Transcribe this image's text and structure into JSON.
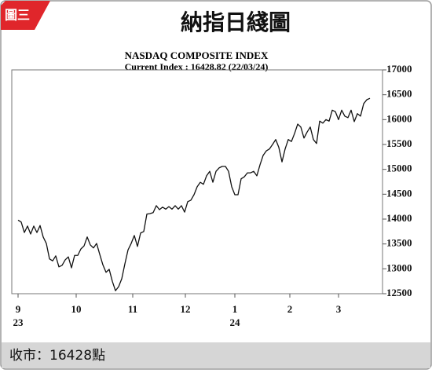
{
  "header": {
    "badge": "圖三",
    "title": "納指日綫圖"
  },
  "footer": "收市：16428點",
  "chart_data": {
    "type": "line",
    "title": "NASDAQ COMPOSITE INDEX",
    "subtitle": "Current Index : 16428.82 (22/03/24)",
    "x": [
      0,
      1,
      2,
      3,
      4,
      5,
      6,
      7,
      8,
      9,
      10,
      11,
      12,
      13,
      14,
      15,
      16,
      17,
      18,
      19,
      20,
      21,
      22,
      23,
      24,
      25,
      26,
      27,
      28,
      29,
      30,
      31,
      32,
      33,
      34,
      35,
      36,
      37,
      38,
      39,
      40,
      41,
      42,
      43,
      44,
      45,
      46,
      47,
      48,
      49,
      50,
      51,
      52,
      53,
      54,
      55,
      56,
      57,
      58,
      59,
      60,
      61,
      62,
      63,
      64,
      65,
      66,
      67,
      68,
      69,
      70,
      71,
      72,
      73,
      74,
      75,
      76,
      77,
      78,
      79,
      80,
      81,
      82,
      83,
      84,
      85,
      86,
      87,
      88,
      89,
      90,
      91,
      92,
      93,
      94,
      95,
      96,
      97,
      98,
      99,
      100,
      101,
      102,
      103,
      104,
      105,
      106,
      107,
      108,
      109,
      110,
      111,
      112
    ],
    "series": [
      {
        "name": "NASDAQ",
        "color": "#111111",
        "values": [
          13980,
          13940,
          13730,
          13860,
          13700,
          13860,
          13730,
          13870,
          13640,
          13510,
          13200,
          13160,
          13260,
          13040,
          13070,
          13180,
          13240,
          13020,
          13270,
          13270,
          13400,
          13460,
          13640,
          13480,
          13420,
          13510,
          13290,
          13080,
          12930,
          12990,
          12750,
          12560,
          12640,
          12800,
          13100,
          13380,
          13510,
          13670,
          13450,
          13720,
          13750,
          14100,
          14110,
          14130,
          14270,
          14190,
          14240,
          14200,
          14250,
          14200,
          14270,
          14200,
          14270,
          14140,
          14350,
          14380,
          14490,
          14650,
          14740,
          14700,
          14870,
          14960,
          14740,
          14960,
          15030,
          15060,
          15060,
          14960,
          14650,
          14490,
          14490,
          14810,
          14850,
          14930,
          14930,
          14960,
          14870,
          15090,
          15280,
          15370,
          15410,
          15500,
          15600,
          15440,
          15150,
          15410,
          15600,
          15560,
          15720,
          15910,
          15850,
          15630,
          15750,
          15850,
          15600,
          15520,
          15970,
          15930,
          16000,
          15970,
          16190,
          16160,
          16000,
          16190,
          16070,
          16040,
          16190,
          15960,
          16120,
          16070,
          16320,
          16400,
          16428.82
        ]
      }
    ],
    "xlim": [
      -2,
      116
    ],
    "xticks": [
      {
        "value": 0,
        "label": "9",
        "year": "23"
      },
      {
        "value": 18.5,
        "label": "10"
      },
      {
        "value": 36.5,
        "label": "11"
      },
      {
        "value": 53.25,
        "label": "12"
      },
      {
        "value": 69,
        "label": "1",
        "year": "24"
      },
      {
        "value": 86.5,
        "label": "2"
      },
      {
        "value": 102,
        "label": "3"
      }
    ],
    "ylim": [
      12500,
      17000
    ],
    "yticks": [
      12500,
      13000,
      13500,
      14000,
      14500,
      15000,
      15500,
      16000,
      16500,
      17000
    ],
    "grid": false
  }
}
